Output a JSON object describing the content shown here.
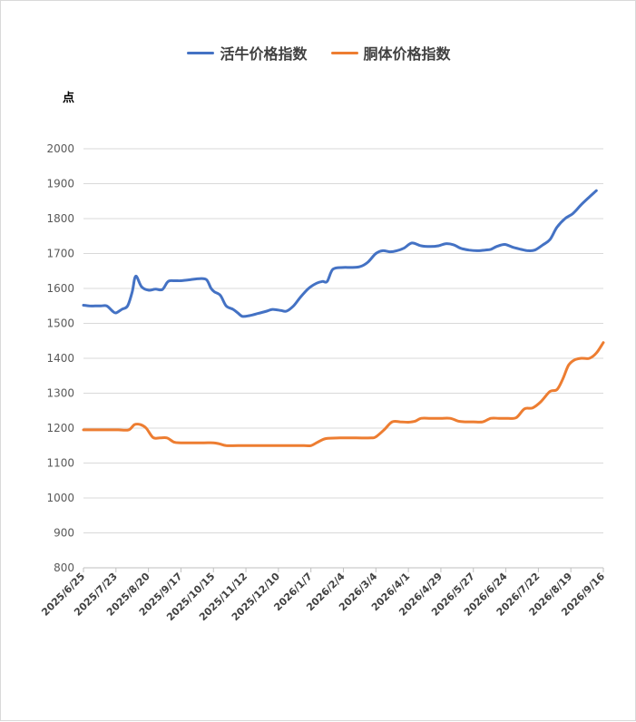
{
  "legend": [
    {
      "name": "活牛价格指数",
      "color": "#4472c4"
    },
    {
      "name": "胴体价格指数",
      "color": "#ed7d31"
    }
  ],
  "unit_label": "点",
  "chart_data": {
    "type": "line",
    "x_tick_labels": [
      "2025/6/25",
      "2025/7/23",
      "2025/8/20",
      "2025/9/17",
      "2025/10/15",
      "2025/11/12",
      "2025/12/10",
      "2026/1/7",
      "2026/2/4",
      "2026/3/4",
      "2026/4/1",
      "2026/4/29",
      "2026/5/27",
      "2026/6/24",
      "2026/7/22",
      "2026/8/19",
      "2026/9/16"
    ],
    "y_ticks": [
      800,
      900,
      1000,
      1100,
      1200,
      1300,
      1400,
      1500,
      1600,
      1700,
      1800,
      1900,
      2000
    ],
    "ylim": [
      800,
      2000
    ],
    "grid": "horizontal",
    "legend_position": "top",
    "series": [
      {
        "name": "活牛价格指数",
        "color": "#4472c4",
        "points": [
          [
            "2025/6/25",
            1552
          ],
          [
            "2025/6/30",
            1550
          ],
          [
            "2025/7/5",
            1550
          ],
          [
            "2025/7/10",
            1550
          ],
          [
            "2025/7/15",
            1550
          ],
          [
            "2025/7/20",
            1535
          ],
          [
            "2025/7/23",
            1530
          ],
          [
            "2025/7/28",
            1540
          ],
          [
            "2025/8/2",
            1550
          ],
          [
            "2025/8/6",
            1590
          ],
          [
            "2025/8/9",
            1635
          ],
          [
            "2025/8/14",
            1605
          ],
          [
            "2025/8/20",
            1595
          ],
          [
            "2025/8/26",
            1598
          ],
          [
            "2025/9/1",
            1597
          ],
          [
            "2025/9/6",
            1620
          ],
          [
            "2025/9/12",
            1622
          ],
          [
            "2025/9/17",
            1622
          ],
          [
            "2025/9/25",
            1625
          ],
          [
            "2025/10/3",
            1628
          ],
          [
            "2025/10/9",
            1625
          ],
          [
            "2025/10/13",
            1600
          ],
          [
            "2025/10/16",
            1590
          ],
          [
            "2025/10/21",
            1580
          ],
          [
            "2025/10/26",
            1550
          ],
          [
            "2025/11/1",
            1540
          ],
          [
            "2025/11/5",
            1530
          ],
          [
            "2025/11/9",
            1520
          ],
          [
            "2025/11/15",
            1522
          ],
          [
            "2025/11/22",
            1528
          ],
          [
            "2025/11/30",
            1535
          ],
          [
            "2025/12/5",
            1540
          ],
          [
            "2025/12/12",
            1537
          ],
          [
            "2025/12/17",
            1535
          ],
          [
            "2025/12/23",
            1550
          ],
          [
            "2025/12/29",
            1575
          ],
          [
            "2026/1/5",
            1600
          ],
          [
            "2026/1/12",
            1615
          ],
          [
            "2026/1/17",
            1620
          ],
          [
            "2026/1/21",
            1620
          ],
          [
            "2026/1/26",
            1655
          ],
          [
            "2026/2/4",
            1660
          ],
          [
            "2026/2/10",
            1660
          ],
          [
            "2026/2/18",
            1662
          ],
          [
            "2026/2/25",
            1675
          ],
          [
            "2026/3/4",
            1700
          ],
          [
            "2026/3/10",
            1708
          ],
          [
            "2026/3/16",
            1705
          ],
          [
            "2026/3/22",
            1708
          ],
          [
            "2026/3/28",
            1715
          ],
          [
            "2026/4/4",
            1730
          ],
          [
            "2026/4/12",
            1722
          ],
          [
            "2026/4/20",
            1720
          ],
          [
            "2026/4/27",
            1722
          ],
          [
            "2026/5/3",
            1728
          ],
          [
            "2026/5/10",
            1725
          ],
          [
            "2026/5/16",
            1715
          ],
          [
            "2026/5/23",
            1710
          ],
          [
            "2026/5/30",
            1708
          ],
          [
            "2026/6/6",
            1710
          ],
          [
            "2026/6/11",
            1712
          ],
          [
            "2026/6/16",
            1720
          ],
          [
            "2026/6/23",
            1726
          ],
          [
            "2026/6/30",
            1718
          ],
          [
            "2026/7/7",
            1712
          ],
          [
            "2026/7/13",
            1708
          ],
          [
            "2026/7/19",
            1710
          ],
          [
            "2026/7/26",
            1725
          ],
          [
            "2026/8/1",
            1740
          ],
          [
            "2026/8/7",
            1775
          ],
          [
            "2026/8/14",
            1800
          ],
          [
            "2026/8/21",
            1815
          ],
          [
            "2026/8/28",
            1840
          ],
          [
            "2026/9/4",
            1862
          ],
          [
            "2026/9/10",
            1880
          ]
        ]
      },
      {
        "name": "胴体价格指数",
        "color": "#ed7d31",
        "points": [
          [
            "2025/6/25",
            1195
          ],
          [
            "2025/7/5",
            1195
          ],
          [
            "2025/7/15",
            1195
          ],
          [
            "2025/7/25",
            1195
          ],
          [
            "2025/8/3",
            1195
          ],
          [
            "2025/8/8",
            1210
          ],
          [
            "2025/8/13",
            1210
          ],
          [
            "2025/8/18",
            1200
          ],
          [
            "2025/8/24",
            1173
          ],
          [
            "2025/8/30",
            1172
          ],
          [
            "2025/9/5",
            1172
          ],
          [
            "2025/9/11",
            1160
          ],
          [
            "2025/9/17",
            1158
          ],
          [
            "2025/9/27",
            1158
          ],
          [
            "2025/10/7",
            1158
          ],
          [
            "2025/10/15",
            1158
          ],
          [
            "2025/10/20",
            1155
          ],
          [
            "2025/10/26",
            1150
          ],
          [
            "2025/11/5",
            1150
          ],
          [
            "2025/11/20",
            1150
          ],
          [
            "2025/12/10",
            1150
          ],
          [
            "2026/1/1",
            1150
          ],
          [
            "2026/1/7",
            1150
          ],
          [
            "2026/1/13",
            1160
          ],
          [
            "2026/1/20",
            1170
          ],
          [
            "2026/2/1",
            1172
          ],
          [
            "2026/2/15",
            1172
          ],
          [
            "2026/2/28",
            1172
          ],
          [
            "2026/3/4",
            1175
          ],
          [
            "2026/3/11",
            1195
          ],
          [
            "2026/3/18",
            1218
          ],
          [
            "2026/3/25",
            1218
          ],
          [
            "2026/4/1",
            1217
          ],
          [
            "2026/4/7",
            1220
          ],
          [
            "2026/4/12",
            1228
          ],
          [
            "2026/4/20",
            1228
          ],
          [
            "2026/4/29",
            1228
          ],
          [
            "2026/5/7",
            1228
          ],
          [
            "2026/5/14",
            1220
          ],
          [
            "2026/5/20",
            1218
          ],
          [
            "2026/5/27",
            1218
          ],
          [
            "2026/6/4",
            1218
          ],
          [
            "2026/6/11",
            1228
          ],
          [
            "2026/6/18",
            1228
          ],
          [
            "2026/6/26",
            1228
          ],
          [
            "2026/7/3",
            1230
          ],
          [
            "2026/7/10",
            1255
          ],
          [
            "2026/7/17",
            1258
          ],
          [
            "2026/7/24",
            1275
          ],
          [
            "2026/8/1",
            1305
          ],
          [
            "2026/8/7",
            1310
          ],
          [
            "2026/8/12",
            1340
          ],
          [
            "2026/8/17",
            1380
          ],
          [
            "2026/8/22",
            1395
          ],
          [
            "2026/8/28",
            1400
          ],
          [
            "2026/9/4",
            1400
          ],
          [
            "2026/9/10",
            1415
          ],
          [
            "2026/9/16",
            1445
          ]
        ]
      }
    ]
  }
}
